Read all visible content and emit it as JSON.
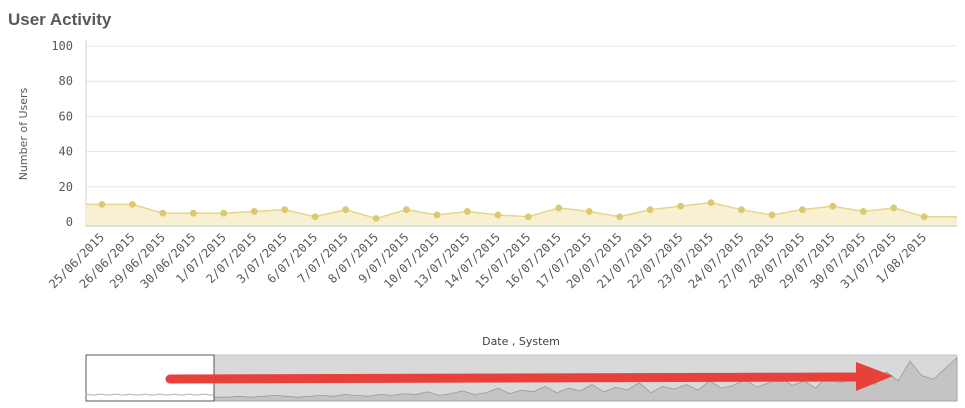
{
  "chart_data": {
    "type": "area",
    "title": "User Activity",
    "xlabel": "Date , System",
    "ylabel": "Number of Users",
    "ylim": [
      0,
      100
    ],
    "yticks": [
      "100",
      "80",
      "60",
      "40",
      "20",
      "0"
    ],
    "grid": true,
    "categories": [
      "25/06/2015",
      "26/06/2015",
      "29/06/2015",
      "30/06/2015",
      "1/07/2015",
      "2/07/2015",
      "3/07/2015",
      "6/07/2015",
      "7/07/2015",
      "8/07/2015",
      "9/07/2015",
      "10/07/2015",
      "13/07/2015",
      "14/07/2015",
      "15/07/2015",
      "16/07/2015",
      "17/07/2015",
      "20/07/2015",
      "21/07/2015",
      "22/07/2015",
      "23/07/2015",
      "24/07/2015",
      "27/07/2015",
      "28/07/2015",
      "29/07/2015",
      "30/07/2015",
      "31/07/2015",
      "1/08/2015"
    ],
    "series": [
      {
        "values": [
          10,
          10,
          5,
          5,
          5,
          6,
          7,
          3,
          7,
          2,
          7,
          4,
          6,
          4,
          3,
          8,
          6,
          3,
          7,
          9,
          11,
          7,
          4,
          7,
          9,
          6,
          8,
          3
        ]
      }
    ],
    "colors": {
      "line": "#e6d68a",
      "fill": "#f7f0d2",
      "point": "#dcc96e",
      "grid": "#e6e6e6",
      "navigator_bg": "#d9d9d9",
      "arrow": "#e8413c"
    }
  }
}
